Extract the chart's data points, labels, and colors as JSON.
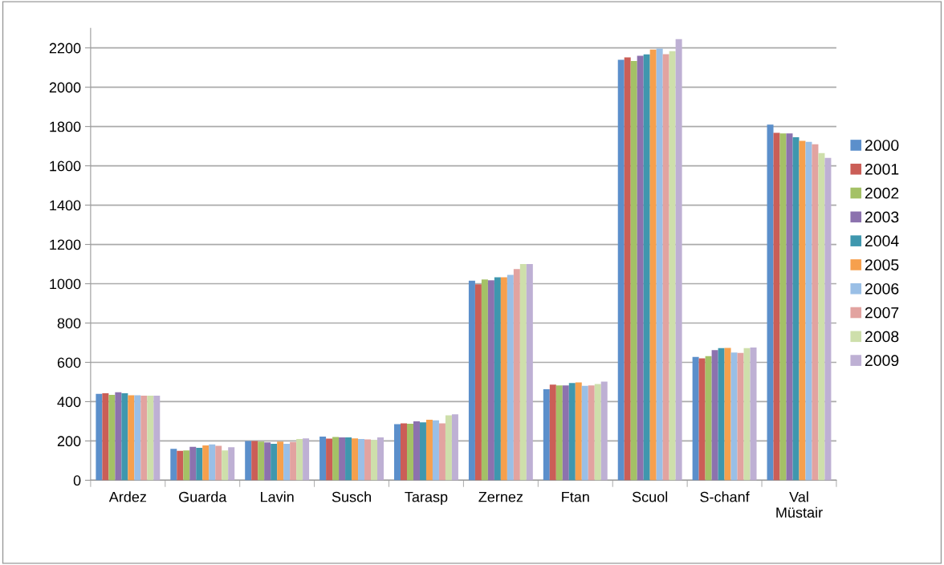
{
  "chart_data": {
    "type": "bar",
    "categories": [
      "Ardez",
      "Guarda",
      "Lavin",
      "Susch",
      "Tarasp",
      "Zernez",
      "Ftan",
      "Scuol",
      "S-chanf",
      "Val\nMüstair"
    ],
    "ylim": [
      0,
      2300
    ],
    "yticks": [
      0,
      200,
      400,
      600,
      800,
      1000,
      1200,
      1400,
      1600,
      1800,
      2000,
      2200
    ],
    "grid": "y",
    "legend": "right",
    "series": [
      {
        "name": "2000",
        "color": "#5b8fcb",
        "values": [
          440,
          160,
          200,
          222,
          285,
          1015,
          463,
          2140,
          627,
          1810
        ]
      },
      {
        "name": "2001",
        "color": "#cb5e57",
        "values": [
          443,
          150,
          200,
          212,
          290,
          997,
          487,
          2152,
          620,
          1768
        ]
      },
      {
        "name": "2002",
        "color": "#a4c166",
        "values": [
          435,
          152,
          197,
          220,
          288,
          1022,
          482,
          2133,
          632,
          1765
        ]
      },
      {
        "name": "2003",
        "color": "#8c72ae",
        "values": [
          448,
          170,
          193,
          218,
          300,
          1017,
          482,
          2160,
          662,
          1765
        ]
      },
      {
        "name": "2004",
        "color": "#3f97ae",
        "values": [
          443,
          165,
          185,
          218,
          295,
          1033,
          495,
          2167,
          672,
          1745
        ]
      },
      {
        "name": "2005",
        "color": "#f6a04d",
        "values": [
          432,
          177,
          197,
          213,
          308,
          1033,
          498,
          2192,
          673,
          1727
        ]
      },
      {
        "name": "2006",
        "color": "#9abfe6",
        "values": [
          432,
          182,
          185,
          210,
          305,
          1045,
          480,
          2197,
          650,
          1722
        ]
      },
      {
        "name": "2007",
        "color": "#e2a3a0",
        "values": [
          430,
          175,
          195,
          208,
          290,
          1075,
          483,
          2168,
          648,
          1710
        ]
      },
      {
        "name": "2008",
        "color": "#cedfab",
        "values": [
          430,
          152,
          210,
          205,
          330,
          1100,
          490,
          2183,
          672,
          1665
        ]
      },
      {
        "name": "2009",
        "color": "#beb0d4",
        "values": [
          430,
          168,
          213,
          218,
          335,
          1100,
          502,
          2245,
          675,
          1640
        ]
      }
    ]
  }
}
